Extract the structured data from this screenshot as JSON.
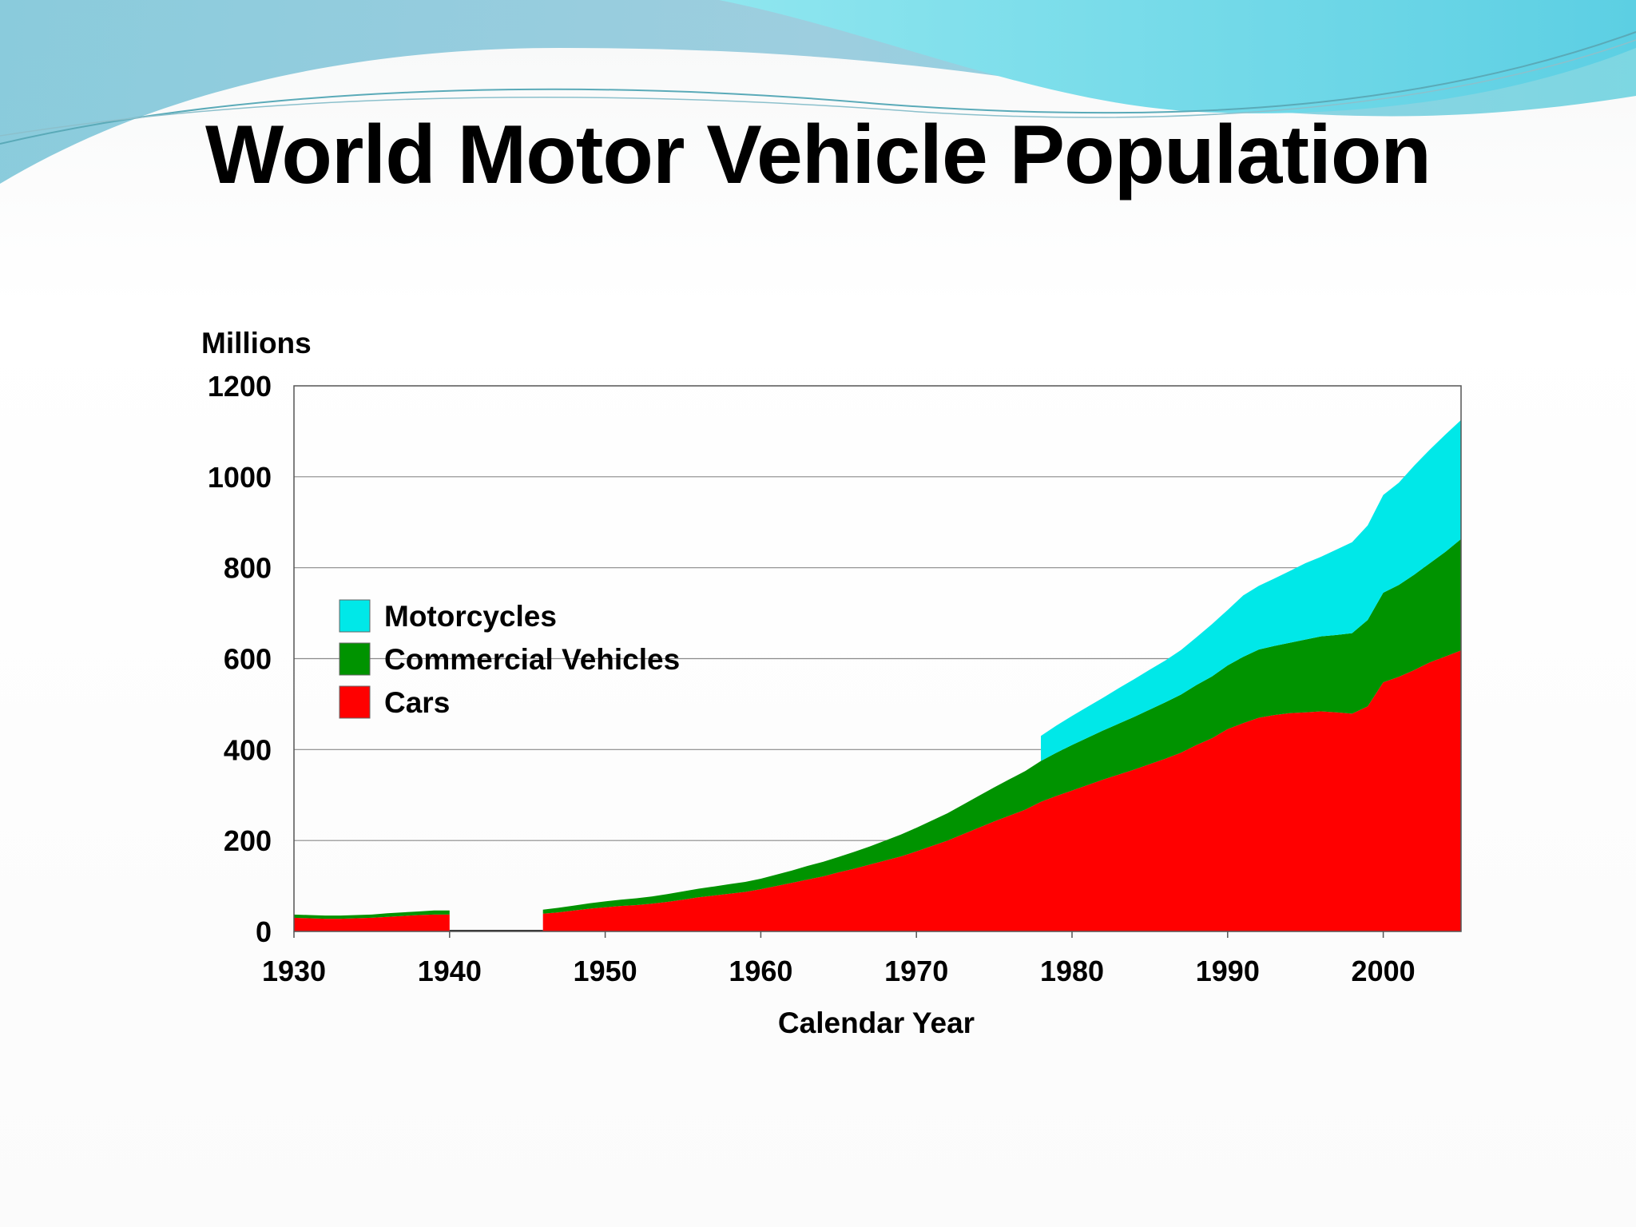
{
  "slide": {
    "title": "World Motor Vehicle Population"
  },
  "chart_data": {
    "type": "area",
    "stacked": true,
    "title": "World Motor Vehicle Population",
    "xlabel": "Calendar Year",
    "ylabel": "Millions",
    "xlim": [
      1930,
      2005
    ],
    "ylim": [
      0,
      1200
    ],
    "x_ticks": [
      1930,
      1940,
      1950,
      1960,
      1970,
      1980,
      1990,
      2000
    ],
    "y_ticks": [
      0,
      200,
      400,
      600,
      800,
      1000,
      1200
    ],
    "grid": true,
    "legend_position": "left",
    "x": [
      1930,
      1931,
      1932,
      1933,
      1934,
      1935,
      1936,
      1937,
      1938,
      1939,
      1940,
      1941,
      1942,
      1943,
      1944,
      1945,
      1946,
      1947,
      1948,
      1949,
      1950,
      1951,
      1952,
      1953,
      1954,
      1955,
      1956,
      1957,
      1958,
      1959,
      1960,
      1961,
      1962,
      1963,
      1964,
      1965,
      1966,
      1967,
      1968,
      1969,
      1970,
      1971,
      1972,
      1973,
      1974,
      1975,
      1976,
      1977,
      1978,
      1979,
      1980,
      1981,
      1982,
      1983,
      1984,
      1985,
      1986,
      1987,
      1988,
      1989,
      1990,
      1991,
      1992,
      1993,
      1994,
      1995,
      1996,
      1997,
      1998,
      1999,
      2000,
      2001,
      2002,
      2003,
      2004,
      2005
    ],
    "series": [
      {
        "name": "Cars",
        "color": "#ff0000",
        "values": [
          30,
          29,
          28,
          28,
          29,
          30,
          32,
          34,
          36,
          37,
          37,
          0,
          0,
          0,
          0,
          0,
          39,
          42,
          46,
          50,
          53,
          56,
          58,
          61,
          65,
          70,
          75,
          79,
          83,
          87,
          93,
          100,
          107,
          114,
          121,
          130,
          138,
          147,
          156,
          165,
          176,
          188,
          200,
          214,
          228,
          242,
          255,
          268,
          285,
          298,
          310,
          322,
          334,
          345,
          356,
          368,
          380,
          393,
          410,
          425,
          445,
          458,
          470,
          476,
          480,
          482,
          484,
          482,
          479,
          495,
          548,
          560,
          575,
          592,
          605,
          618
        ]
      },
      {
        "name": "Commercial Vehicles",
        "color": "#009300",
        "values": [
          7,
          7,
          7,
          7,
          7,
          7,
          8,
          8,
          8,
          9,
          9,
          0,
          0,
          0,
          0,
          0,
          9,
          10,
          11,
          12,
          13,
          14,
          15,
          16,
          17,
          18,
          19,
          20,
          21,
          22,
          23,
          25,
          27,
          30,
          32,
          34,
          37,
          40,
          44,
          48,
          52,
          56,
          60,
          65,
          70,
          75,
          80,
          85,
          90,
          95,
          100,
          104,
          108,
          112,
          116,
          120,
          124,
          128,
          132,
          136,
          140,
          146,
          150,
          152,
          155,
          160,
          165,
          170,
          177,
          190,
          197,
          202,
          210,
          218,
          230,
          245
        ]
      },
      {
        "name": "Motorcycles",
        "color": "#00e8e8",
        "values": [
          null,
          null,
          null,
          null,
          null,
          null,
          null,
          null,
          null,
          null,
          null,
          null,
          null,
          null,
          null,
          null,
          null,
          null,
          null,
          null,
          null,
          null,
          null,
          null,
          null,
          null,
          null,
          null,
          null,
          null,
          null,
          null,
          null,
          null,
          null,
          null,
          null,
          null,
          null,
          null,
          null,
          null,
          null,
          null,
          null,
          null,
          null,
          null,
          55,
          60,
          64,
          68,
          72,
          78,
          83,
          88,
          92,
          98,
          105,
          115,
          122,
          135,
          140,
          148,
          158,
          168,
          175,
          188,
          200,
          208,
          215,
          225,
          240,
          250,
          258,
          262
        ]
      }
    ],
    "legend": [
      "Motorcycles",
      "Commercial Vehicles",
      "Cars"
    ]
  }
}
